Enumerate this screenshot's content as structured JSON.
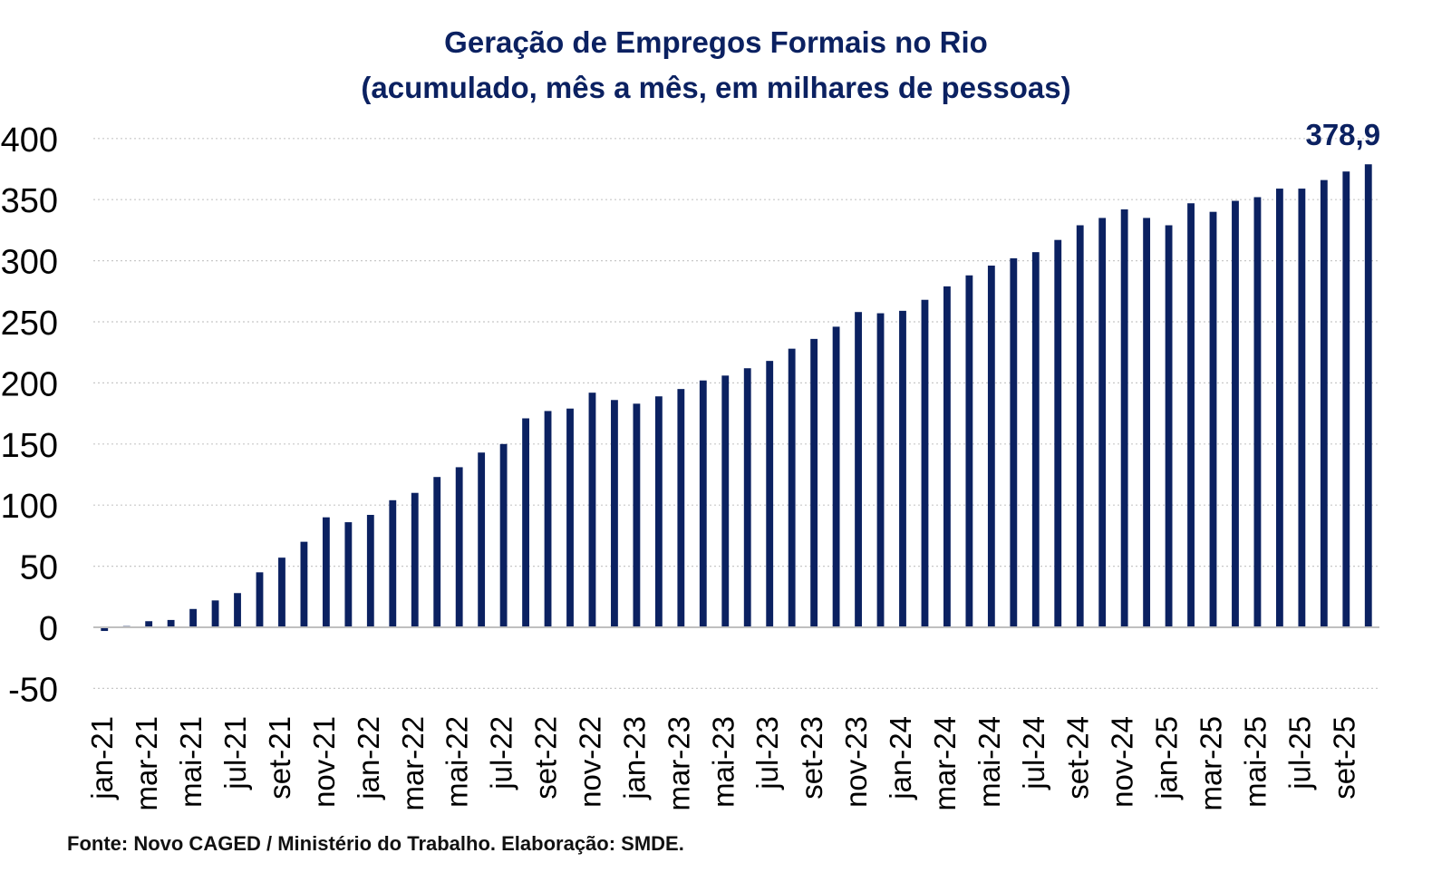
{
  "chart_data": {
    "type": "bar",
    "title": "Geração de Empregos Formais no Rio",
    "subtitle": "(acumulado, mês a mês, em milhares de pessoas)",
    "xlabel": "",
    "ylabel": "",
    "ylim": [
      -50,
      400
    ],
    "yticks": [
      400,
      350,
      300,
      250,
      200,
      150,
      100,
      50,
      0,
      -50
    ],
    "grid": true,
    "bar_color": "#0b2161",
    "categories": [
      "jan-21",
      "fev-21",
      "mar-21",
      "abr-21",
      "mai-21",
      "jun-21",
      "jul-21",
      "ago-21",
      "set-21",
      "out-21",
      "nov-21",
      "dez-21",
      "jan-22",
      "fev-22",
      "mar-22",
      "abr-22",
      "mai-22",
      "jun-22",
      "jul-22",
      "ago-22",
      "set-22",
      "out-22",
      "nov-22",
      "dez-22",
      "jan-23",
      "fev-23",
      "mar-23",
      "abr-23",
      "mai-23",
      "jun-23",
      "jul-23",
      "ago-23",
      "set-23",
      "out-23",
      "nov-23",
      "dez-23",
      "jan-24",
      "fev-24",
      "mar-24",
      "abr-24",
      "mai-24",
      "jun-24",
      "jul-24",
      "ago-24",
      "set-24",
      "out-24",
      "nov-24",
      "dez-24",
      "jan-25",
      "fev-25",
      "mar-25",
      "abr-25",
      "mai-25",
      "jun-25",
      "jul-25",
      "ago-25",
      "set-25",
      "out-25"
    ],
    "visible_tick_labels": [
      "jan-21",
      "mar-21",
      "mai-21",
      "jul-21",
      "set-21",
      "nov-21",
      "jan-22",
      "mar-22",
      "mai-22",
      "jul-22",
      "set-22",
      "nov-22",
      "jan-23",
      "mar-23",
      "mai-23",
      "jul-23",
      "set-23",
      "nov-23",
      "jan-24",
      "mar-24",
      "mai-24",
      "jul-24",
      "set-24",
      "nov-24",
      "jan-25",
      "mar-25",
      "mai-25",
      "jul-25",
      "set-25"
    ],
    "values": [
      -3,
      1,
      5,
      6,
      15,
      22,
      28,
      45,
      57,
      70,
      90,
      86,
      92,
      104,
      110,
      123,
      131,
      143,
      150,
      171,
      177,
      179,
      192,
      186,
      183,
      189,
      195,
      202,
      206,
      212,
      218,
      228,
      236,
      246,
      258,
      257,
      259,
      268,
      279,
      288,
      296,
      302,
      307,
      317,
      329,
      335,
      342,
      335,
      329,
      347,
      340,
      349,
      352,
      359,
      359,
      366,
      373,
      378.9
    ],
    "data_label": "378,9"
  },
  "footer": {
    "source": "Fonte: Novo CAGED / Ministério do Trabalho. Elaboração: SMDE."
  }
}
